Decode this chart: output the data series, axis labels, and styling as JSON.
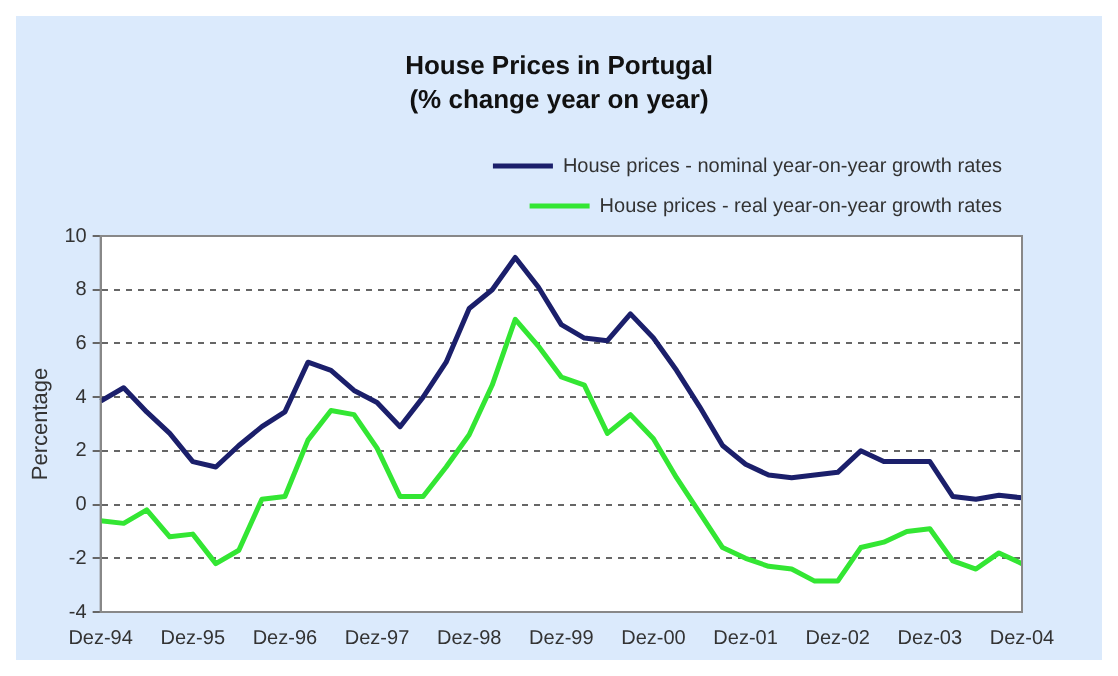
{
  "chart_data": {
    "type": "line",
    "title": "House Prices in Portugal",
    "subtitle": "(% change year on year)",
    "ylabel": "Percentage",
    "categories": [
      "Dez-94",
      null,
      null,
      null,
      "Dez-95",
      null,
      null,
      null,
      "Dez-96",
      null,
      null,
      null,
      "Dez-97",
      null,
      null,
      null,
      "Dez-98",
      null,
      null,
      null,
      "Dez-99",
      null,
      null,
      null,
      "Dez-00",
      null,
      null,
      null,
      "Dez-01",
      null,
      null,
      null,
      "Dez-02",
      null,
      null,
      null,
      "Dez-03",
      null,
      null,
      null,
      "Dez-04"
    ],
    "series": [
      {
        "name": "House prices - nominal year-on-year growth rates",
        "color": "#1b1f6b",
        "values": [
          3.85,
          4.35,
          3.45,
          2.65,
          1.6,
          1.4,
          2.2,
          2.9,
          3.45,
          5.3,
          5.0,
          4.25,
          3.8,
          2.9,
          4.0,
          5.3,
          7.3,
          8.0,
          9.2,
          8.1,
          6.7,
          6.2,
          6.1,
          7.1,
          6.2,
          5.0,
          3.65,
          2.2,
          1.5,
          1.1,
          1.0,
          1.1,
          1.2,
          2.0,
          1.6,
          1.6,
          1.6,
          0.3,
          0.2,
          0.35,
          0.25
        ]
      },
      {
        "name": "House prices - real year-on-year growth rates",
        "color": "#33e633",
        "values": [
          -0.6,
          -0.7,
          -0.2,
          -1.2,
          -1.1,
          -2.2,
          -1.7,
          0.2,
          0.3,
          2.4,
          3.5,
          3.35,
          2.1,
          0.3,
          0.3,
          1.4,
          2.6,
          4.45,
          6.9,
          5.9,
          4.75,
          4.45,
          2.65,
          3.35,
          2.45,
          1.0,
          -0.3,
          -1.6,
          -2.0,
          -2.3,
          -2.4,
          -2.85,
          -2.85,
          -1.6,
          -1.4,
          -1.0,
          -0.9,
          -2.1,
          -2.4,
          -1.8,
          -2.2
        ]
      }
    ],
    "ylim": [
      -4,
      10
    ],
    "yticks": [
      -4,
      -2,
      0,
      2,
      4,
      6,
      8,
      10
    ],
    "grid": "y",
    "legend": "top right",
    "marker": "none",
    "line_style": "solid"
  }
}
